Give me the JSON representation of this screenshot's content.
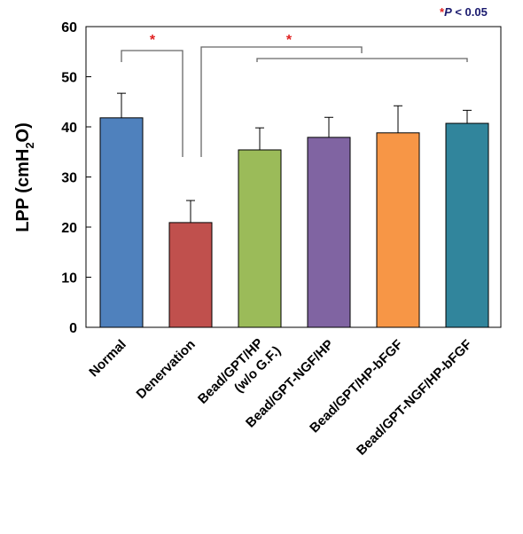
{
  "chart_data": {
    "type": "bar",
    "y_label": {
      "before": "LPP (cmH",
      "sub": "2",
      "after": "O)"
    },
    "annotation": {
      "star": "*",
      "text": "P",
      "rest": " < 0.05"
    },
    "significance": [
      "*",
      "*"
    ],
    "categories": [
      "Normal",
      "Denervation",
      [
        "Bead/GPT/HP",
        "(w/o G.F.)"
      ],
      "Bead/GPT-NGF/HP",
      "Bead/GPT/HP-bFGF",
      "Bead/GPT-NGF/HP-bFGF"
    ],
    "values": [
      41.8,
      20.9,
      35.4,
      37.9,
      38.8,
      40.7
    ],
    "errors": [
      4.9,
      4.4,
      4.4,
      4.0,
      5.4,
      2.6
    ],
    "colors": [
      "#4f81bd",
      "#c0504d",
      "#9bbb59",
      "#8064a2",
      "#f79646",
      "#31859c"
    ],
    "ylim": [
      0,
      60
    ],
    "yticks": [
      0,
      10,
      20,
      30,
      40,
      50,
      60
    ]
  }
}
